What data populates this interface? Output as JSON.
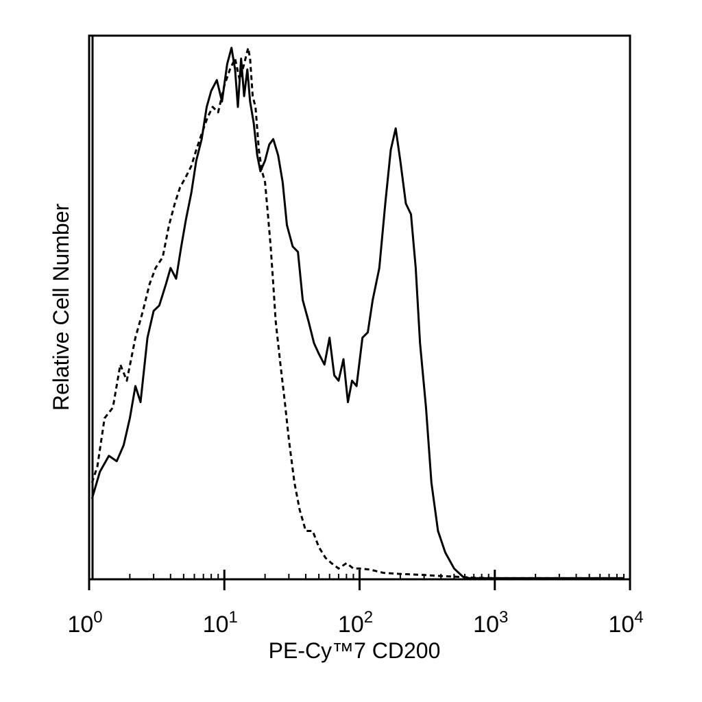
{
  "chart_data": {
    "type": "line",
    "title": "",
    "xlabel": "PE-Cy™7 CD200",
    "ylabel": "Relative Cell Number",
    "xscale": "log",
    "xlim": [
      1,
      10000
    ],
    "ylim": [
      0,
      1
    ],
    "grid": false,
    "x_ticks": [
      {
        "base": "10",
        "exp": "0",
        "value": 1
      },
      {
        "base": "10",
        "exp": "1",
        "value": 10
      },
      {
        "base": "10",
        "exp": "2",
        "value": 100
      },
      {
        "base": "10",
        "exp": "3",
        "value": 1000
      },
      {
        "base": "10",
        "exp": "4",
        "value": 10000
      }
    ],
    "series": [
      {
        "style": "solid",
        "color": "#000000",
        "x": [
          1.05,
          1.2,
          1.4,
          1.6,
          1.8,
          2.0,
          2.2,
          2.4,
          2.7,
          3.0,
          3.3,
          3.7,
          4.0,
          4.4,
          4.8,
          5.2,
          5.7,
          6.2,
          6.8,
          7.4,
          8.0,
          8.8,
          9.6,
          10.5,
          11.3,
          12.0,
          12.6,
          13.3,
          14.0,
          14.8,
          15.5,
          16.5,
          17.5,
          18.5,
          20.0,
          21.5,
          23.0,
          25.0,
          27.0,
          29.0,
          32.0,
          35.0,
          38.0,
          42.0,
          46.0,
          50.0,
          55.0,
          60.0,
          65.0,
          70.0,
          76.0,
          82.0,
          88.0,
          95.0,
          105.0,
          115.0,
          125.0,
          140.0,
          155.0,
          170.0,
          185.0,
          200.0,
          220.0,
          240.0,
          260.0,
          280.0,
          310.0,
          340.0,
          380.0,
          430.0,
          500.0,
          580.0,
          650.0,
          750.0,
          1000.0,
          2000.0,
          5000.0,
          8000.0,
          9000.0
        ],
        "y": [
          0.15,
          0.2,
          0.23,
          0.22,
          0.25,
          0.3,
          0.36,
          0.33,
          0.45,
          0.5,
          0.51,
          0.55,
          0.58,
          0.56,
          0.62,
          0.67,
          0.72,
          0.78,
          0.82,
          0.88,
          0.91,
          0.93,
          0.89,
          0.96,
          0.99,
          0.95,
          0.88,
          0.97,
          0.9,
          0.95,
          0.89,
          0.85,
          0.79,
          0.76,
          0.78,
          0.81,
          0.82,
          0.79,
          0.74,
          0.66,
          0.62,
          0.61,
          0.52,
          0.48,
          0.44,
          0.42,
          0.4,
          0.45,
          0.38,
          0.37,
          0.41,
          0.33,
          0.37,
          0.36,
          0.45,
          0.46,
          0.52,
          0.58,
          0.7,
          0.8,
          0.84,
          0.78,
          0.7,
          0.68,
          0.58,
          0.44,
          0.32,
          0.18,
          0.09,
          0.05,
          0.02,
          0.005,
          0.002,
          0.002,
          0.002,
          0.002,
          0.002,
          0.002,
          0.002
        ]
      },
      {
        "style": "dashed",
        "color": "#000000",
        "x": [
          1.05,
          1.15,
          1.3,
          1.5,
          1.7,
          1.9,
          2.2,
          2.5,
          2.8,
          3.1,
          3.5,
          3.9,
          4.3,
          4.7,
          5.2,
          5.7,
          6.2,
          6.8,
          7.5,
          8.2,
          9.0,
          10.0,
          11.0,
          12.0,
          13.0,
          14.0,
          15.0,
          15.5,
          16.2,
          17.0,
          18.0,
          19.0,
          20.0,
          21.0,
          22.0,
          23.0,
          24.0,
          26.0,
          28.0,
          30.0,
          33.0,
          36.0,
          40.0,
          45.0,
          50.0,
          56.0,
          62.0,
          70.0,
          80.0,
          90.0,
          100.0,
          120.0,
          150.0,
          200.0,
          300.0,
          400.0,
          500.0,
          600.0,
          700.0,
          1000.0,
          2000.0,
          5000.0,
          9000.0
        ],
        "y": [
          0.18,
          0.21,
          0.3,
          0.32,
          0.4,
          0.37,
          0.45,
          0.5,
          0.55,
          0.58,
          0.6,
          0.66,
          0.7,
          0.73,
          0.75,
          0.77,
          0.8,
          0.83,
          0.86,
          0.88,
          0.87,
          0.92,
          0.95,
          0.97,
          0.93,
          0.96,
          0.99,
          0.97,
          0.9,
          0.88,
          0.8,
          0.76,
          0.74,
          0.68,
          0.62,
          0.55,
          0.48,
          0.4,
          0.33,
          0.26,
          0.18,
          0.13,
          0.09,
          0.09,
          0.06,
          0.04,
          0.03,
          0.02,
          0.03,
          0.02,
          0.02,
          0.018,
          0.012,
          0.01,
          0.008,
          0.006,
          0.005,
          0.004,
          0.003,
          0.002,
          0.002,
          0.002,
          0.002
        ]
      }
    ]
  }
}
